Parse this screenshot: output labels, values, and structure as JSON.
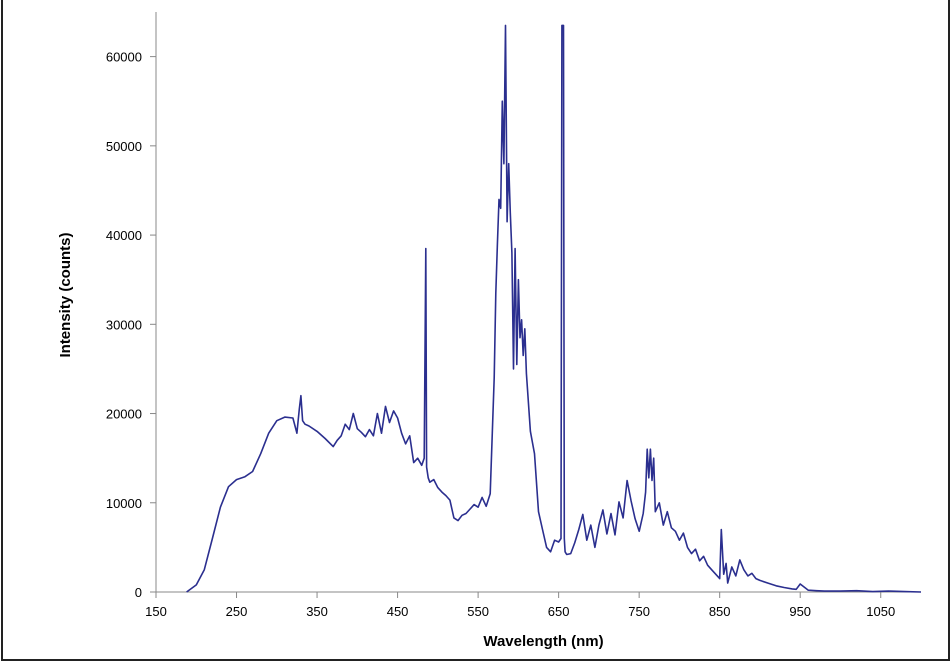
{
  "chart_data": {
    "type": "line",
    "title": "",
    "xlabel": "Wavelength (nm)",
    "ylabel": "Intensity (counts)",
    "xlim": [
      150,
      1100
    ],
    "ylim": [
      0,
      65000
    ],
    "xticks": [
      150,
      250,
      350,
      450,
      550,
      650,
      750,
      850,
      950,
      1050
    ],
    "yticks": [
      0,
      10000,
      20000,
      30000,
      40000,
      50000,
      60000
    ],
    "x_tick_labels": [
      "150",
      "250",
      "350",
      "450",
      "550",
      "650",
      "750",
      "850",
      "950",
      "1050"
    ],
    "y_tick_labels": [
      "0",
      "10000",
      "20000",
      "30000",
      "40000",
      "50000",
      "60000"
    ],
    "grid": false,
    "line_color": "#2b2f8f",
    "series": [
      {
        "x": [
          188,
          200,
          210,
          220,
          230,
          240,
          250,
          260,
          270,
          280,
          290,
          300,
          310,
          320,
          325,
          328,
          330,
          332,
          335,
          340,
          350,
          360,
          370,
          375,
          380,
          385,
          390,
          395,
          400,
          405,
          410,
          415,
          420,
          425,
          430,
          435,
          440,
          445,
          450,
          455,
          460,
          465,
          470,
          475,
          480,
          483,
          485,
          486,
          488,
          490,
          495,
          500,
          505,
          510,
          515,
          520,
          525,
          530,
          535,
          540,
          545,
          550,
          555,
          560,
          565,
          570,
          572,
          574,
          576,
          578,
          580,
          582,
          584,
          586,
          588,
          590,
          592,
          594,
          596,
          598,
          600,
          602,
          604,
          606,
          608,
          610,
          615,
          620,
          625,
          630,
          635,
          640,
          645,
          650,
          653,
          654,
          655,
          656,
          657,
          658,
          660,
          665,
          670,
          675,
          680,
          685,
          690,
          695,
          700,
          705,
          710,
          715,
          720,
          725,
          730,
          735,
          740,
          745,
          750,
          755,
          758,
          760,
          762,
          764,
          766,
          768,
          770,
          775,
          780,
          785,
          790,
          795,
          800,
          805,
          810,
          815,
          820,
          825,
          830,
          835,
          840,
          845,
          850,
          852,
          855,
          858,
          860,
          865,
          870,
          875,
          880,
          885,
          890,
          895,
          900,
          910,
          920,
          930,
          940,
          945,
          950,
          960,
          970,
          980,
          1000,
          1020,
          1040,
          1060,
          1080,
          1100
        ],
        "y": [
          0,
          800,
          2500,
          6000,
          9500,
          11800,
          12600,
          12900,
          13500,
          15500,
          17800,
          19200,
          19600,
          19500,
          17800,
          20500,
          22000,
          19200,
          18800,
          18600,
          18000,
          17200,
          16300,
          17000,
          17500,
          18800,
          18200,
          20000,
          18300,
          17900,
          17400,
          18200,
          17500,
          20000,
          17800,
          20800,
          19000,
          20300,
          19500,
          17800,
          16600,
          17500,
          14500,
          15000,
          14200,
          15000,
          38500,
          14000,
          12800,
          12300,
          12600,
          11700,
          11200,
          10800,
          10300,
          8300,
          8000,
          8600,
          8800,
          9300,
          9800,
          9500,
          10600,
          9600,
          11000,
          24000,
          33500,
          39000,
          44000,
          43000,
          55000,
          48000,
          63500,
          41500,
          48000,
          42500,
          38000,
          25000,
          38500,
          25500,
          35000,
          28500,
          30500,
          26500,
          29500,
          24500,
          18000,
          15500,
          9000,
          7000,
          5000,
          4500,
          5800,
          5600,
          6000,
          63500,
          63500,
          63500,
          6000,
          4500,
          4200,
          4300,
          5500,
          7000,
          8700,
          5800,
          7500,
          5000,
          7500,
          9200,
          6500,
          8800,
          6400,
          10100,
          8300,
          12500,
          10200,
          8200,
          6800,
          8800,
          11200,
          16000,
          12800,
          16000,
          12500,
          15000,
          9000,
          10000,
          7500,
          9000,
          7200,
          6800,
          5800,
          6600,
          5000,
          4300,
          4800,
          3500,
          4000,
          3000,
          2500,
          2000,
          1500,
          7000,
          2000,
          3200,
          1000,
          2800,
          1800,
          3600,
          2500,
          1800,
          2100,
          1500,
          1300,
          1000,
          700,
          500,
          350,
          300,
          900,
          200,
          150,
          100,
          100,
          150,
          50,
          100,
          50,
          0
        ]
      }
    ]
  }
}
